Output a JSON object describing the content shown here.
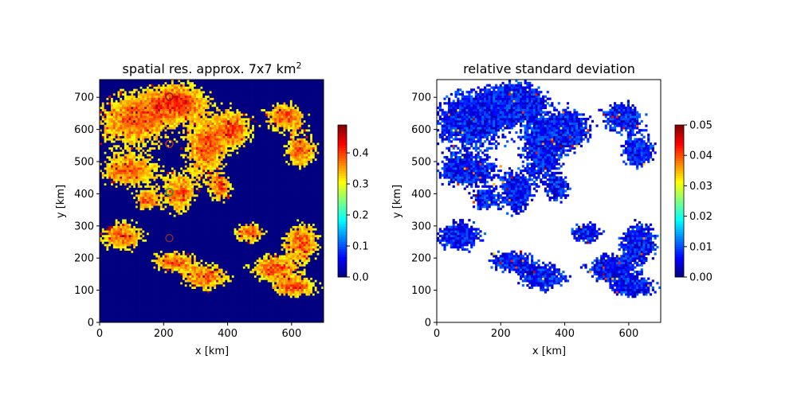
{
  "chart_data": [
    {
      "type": "heatmap",
      "title": "spatial res. approx. 7x7 km",
      "title_sup": "2",
      "xlabel": "x [km]",
      "ylabel": "y [km]",
      "xlim": [
        0,
        700
      ],
      "ylim": [
        0,
        755
      ],
      "xticks": [
        0,
        200,
        400,
        600
      ],
      "yticks": [
        0,
        100,
        200,
        300,
        400,
        500,
        600,
        700
      ],
      "grid": false,
      "colormap": "jet",
      "colorbar": {
        "range": [
          0,
          0.49
        ],
        "ticks": [
          "0.0",
          "0.1",
          "0.2",
          "0.3",
          "0.4"
        ]
      },
      "background_value": 0,
      "cloud_field": {
        "description_source": "gridded field; low values (dark navy) in clear areas, 0.30-0.49 (yellow-orange-red) in cloud areas",
        "value_min": 0,
        "value_max": 0.49,
        "regions": [
          {
            "x": 110,
            "y": 630,
            "rx": 160,
            "ry": 110
          },
          {
            "x": 250,
            "y": 690,
            "rx": 110,
            "ry": 70
          },
          {
            "x": 90,
            "y": 470,
            "rx": 120,
            "ry": 60
          },
          {
            "x": 330,
            "y": 540,
            "rx": 70,
            "ry": 120
          },
          {
            "x": 420,
            "y": 600,
            "rx": 70,
            "ry": 80
          },
          {
            "x": 580,
            "y": 640,
            "rx": 80,
            "ry": 60
          },
          {
            "x": 630,
            "y": 530,
            "rx": 60,
            "ry": 70
          },
          {
            "x": 250,
            "y": 400,
            "rx": 60,
            "ry": 80
          },
          {
            "x": 380,
            "y": 420,
            "rx": 40,
            "ry": 50
          },
          {
            "x": 70,
            "y": 270,
            "rx": 90,
            "ry": 60
          },
          {
            "x": 230,
            "y": 190,
            "rx": 80,
            "ry": 40
          },
          {
            "x": 330,
            "y": 140,
            "rx": 90,
            "ry": 50
          },
          {
            "x": 630,
            "y": 250,
            "rx": 70,
            "ry": 80
          },
          {
            "x": 540,
            "y": 170,
            "rx": 90,
            "ry": 50
          },
          {
            "x": 470,
            "y": 280,
            "rx": 60,
            "ry": 40
          },
          {
            "x": 610,
            "y": 110,
            "rx": 90,
            "ry": 40
          },
          {
            "x": 150,
            "y": 380,
            "rx": 50,
            "ry": 40
          }
        ]
      },
      "markers": [
        {
          "x": 218,
          "y": 702,
          "color": "#8b1a1a"
        },
        {
          "x": 218,
          "y": 555,
          "color": "#b83a1e"
        },
        {
          "x": 218,
          "y": 405,
          "color": "#3a8a2a"
        },
        {
          "x": 218,
          "y": 262,
          "color": "#7a3030"
        }
      ]
    },
    {
      "type": "heatmap",
      "title": "relative standard deviation",
      "xlabel": "x [km]",
      "ylabel": "y [km]",
      "xlim": [
        0,
        700
      ],
      "ylim": [
        0,
        755
      ],
      "xticks": [
        0,
        200,
        400,
        600
      ],
      "yticks": [
        0,
        100,
        200,
        300,
        400,
        500,
        600,
        700
      ],
      "grid": false,
      "colormap": "jet",
      "colorbar": {
        "range": [
          0,
          0.05
        ],
        "ticks": [
          "0.00",
          "0.01",
          "0.02",
          "0.03",
          "0.04",
          "0.05"
        ]
      },
      "masked_color": "#ffffff",
      "typical_value_range": [
        0.002,
        0.012
      ],
      "outlier_value_range": [
        0.03,
        0.05
      ]
    }
  ]
}
